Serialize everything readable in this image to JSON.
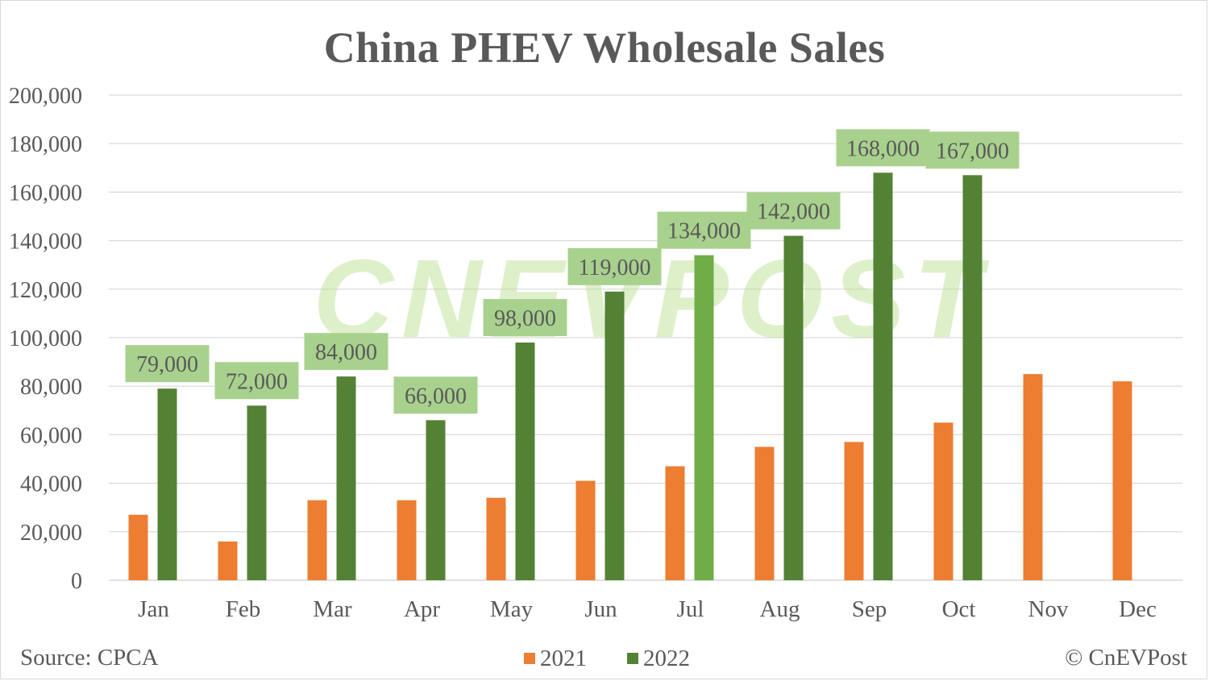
{
  "title": "China PHEV Wholesale Sales",
  "source": "Source: CPCA",
  "credit": "© CnEVPost",
  "watermark": "CnEVPost",
  "colors": {
    "series_2021": "#ed7d31",
    "series_2022": "#548235",
    "series_2022_highlight": "#70ad47",
    "label_bg": "#a9d18e",
    "grid": "#d9d9d9",
    "text": "#595959"
  },
  "chart_data": {
    "type": "bar",
    "title": "China PHEV Wholesale Sales",
    "categories": [
      "Jan",
      "Feb",
      "Mar",
      "Apr",
      "May",
      "Jun",
      "Jul",
      "Aug",
      "Sep",
      "Oct",
      "Nov",
      "Dec"
    ],
    "series": [
      {
        "name": "2021",
        "values": [
          27000,
          16000,
          33000,
          33000,
          34000,
          41000,
          47000,
          55000,
          57000,
          65000,
          85000,
          82000
        ]
      },
      {
        "name": "2022",
        "values": [
          79000,
          72000,
          84000,
          66000,
          98000,
          119000,
          134000,
          142000,
          168000,
          167000,
          null,
          null
        ]
      }
    ],
    "data_labels_2022": [
      "79,000",
      "72,000",
      "84,000",
      "66,000",
      "98,000",
      "119,000",
      "134,000",
      "142,000",
      "168,000",
      "167,000"
    ],
    "highlighted_category": "Jul",
    "y_ticks": [
      "0",
      "20,000",
      "40,000",
      "60,000",
      "80,000",
      "100,000",
      "120,000",
      "140,000",
      "160,000",
      "180,000",
      "200,000"
    ],
    "ylim": [
      0,
      200000
    ],
    "grid": true,
    "legend": "bottom",
    "xlabel": "",
    "ylabel": ""
  }
}
